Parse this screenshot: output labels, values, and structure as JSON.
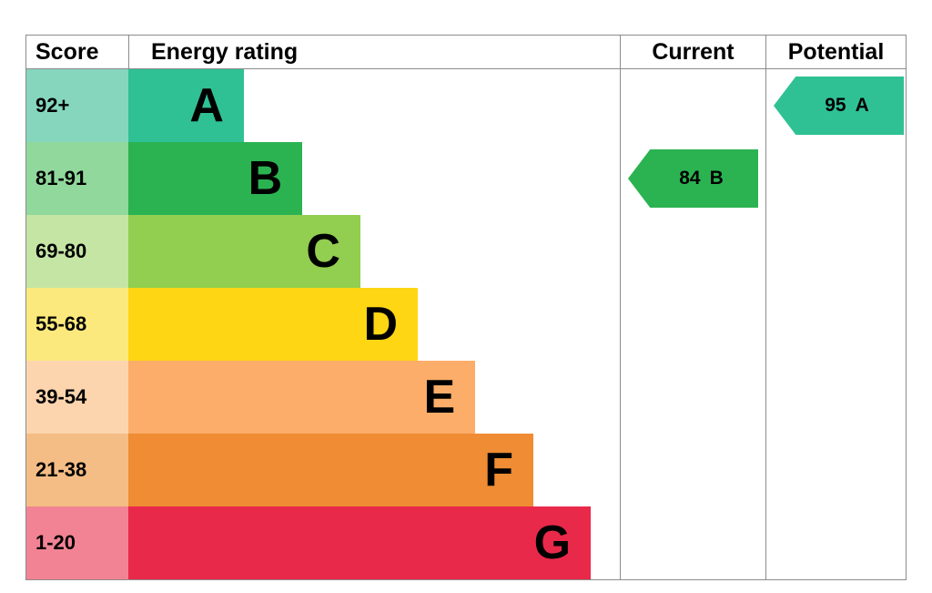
{
  "header": {
    "score": "Score",
    "energy_rating": "Energy rating",
    "current": "Current",
    "potential": "Potential"
  },
  "chart_data": {
    "type": "bar",
    "title": "Energy efficiency rating (EPC) chart",
    "legend_position": "none",
    "bands": [
      {
        "letter": "A",
        "score_range": "92+",
        "bar_color": "#2fc194",
        "score_cell_color": "#85d6bd",
        "bar_width": "23.5%"
      },
      {
        "letter": "B",
        "score_range": "81-91",
        "bar_color": "#2bb351",
        "score_cell_color": "#90d89b",
        "bar_width": "35.4%"
      },
      {
        "letter": "C",
        "score_range": "69-80",
        "bar_color": "#92ce4f",
        "score_cell_color": "#c4e5a4",
        "bar_width": "47.2%"
      },
      {
        "letter": "D",
        "score_range": "55-68",
        "bar_color": "#ffd614",
        "score_cell_color": "#fce97d",
        "bar_width": "58.9%"
      },
      {
        "letter": "E",
        "score_range": "39-54",
        "bar_color": "#fbad69",
        "score_cell_color": "#fcd5ae",
        "bar_width": "70.6%"
      },
      {
        "letter": "F",
        "score_range": "21-38",
        "bar_color": "#ef8c34",
        "score_cell_color": "#f4bd85",
        "bar_width": "82.4%"
      },
      {
        "letter": "G",
        "score_range": "1-20",
        "bar_color": "#e9294a",
        "score_cell_color": "#f28394",
        "bar_width": "94.1%"
      }
    ],
    "current": {
      "score": "84",
      "band": "B",
      "band_index": 1,
      "arrow_color": "#2bb351"
    },
    "potential": {
      "score": "95",
      "band": "A",
      "band_index": 0,
      "arrow_color": "#2fc194"
    }
  }
}
